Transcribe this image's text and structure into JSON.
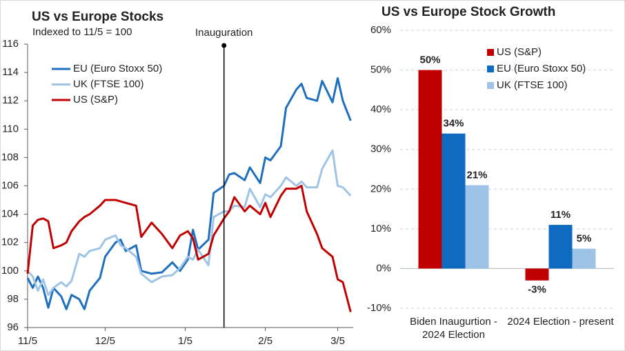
{
  "chart_data": [
    {
      "type": "line",
      "title": "US vs Europe Stocks",
      "subtitle": "Indexed to 11/5 = 100",
      "x": [
        "11/5",
        "11/7",
        "11/9",
        "11/11",
        "11/13",
        "11/15",
        "11/18",
        "11/20",
        "11/22",
        "11/25",
        "11/27",
        "11/29",
        "12/3",
        "12/5",
        "12/9",
        "12/11",
        "12/13",
        "12/17",
        "12/19",
        "12/23",
        "12/27",
        "12/31",
        "1/3",
        "1/6",
        "1/8",
        "1/10",
        "1/14",
        "1/16",
        "1/20",
        "1/22",
        "1/24",
        "1/28",
        "1/30",
        "2/3",
        "2/5",
        "2/7",
        "2/11",
        "2/13",
        "2/17",
        "2/19",
        "2/21",
        "2/25",
        "2/27",
        "3/3",
        "3/5",
        "3/7",
        "3/10"
      ],
      "series": [
        {
          "name": "EU (Euro Stoxx 50)",
          "color": "#1f6fbf",
          "values": [
            99.5,
            98.8,
            99.6,
            98.8,
            97.4,
            98.8,
            98.2,
            97.3,
            98.3,
            98.0,
            97.3,
            98.6,
            99.5,
            101.0,
            102.0,
            102.2,
            101.4,
            101.8,
            100.0,
            99.8,
            99.9,
            100.6,
            100.0,
            100.8,
            102.9,
            101.5,
            102.2,
            105.5,
            106.0,
            106.8,
            106.9,
            106.4,
            107.3,
            106.2,
            108.0,
            107.8,
            108.8,
            111.5,
            112.8,
            113.2,
            112.2,
            112.0,
            113.4,
            111.9,
            113.6,
            112.0,
            110.6
          ]
        },
        {
          "name": "UK (FTSE 100)",
          "color": "#9dc3e6",
          "values": [
            100.0,
            99.6,
            98.6,
            99.4,
            98.3,
            98.8,
            99.2,
            98.9,
            99.3,
            101.2,
            101.0,
            101.4,
            101.6,
            102.2,
            102.5,
            101.8,
            101.6,
            101.0,
            99.8,
            99.2,
            99.6,
            99.7,
            100.2,
            101.0,
            100.8,
            101.5,
            100.4,
            103.8,
            104.2,
            104.2,
            104.6,
            104.5,
            105.8,
            104.5,
            105.4,
            105.2,
            106.0,
            106.6,
            106.0,
            106.3,
            105.9,
            105.9,
            107.2,
            108.5,
            106.0,
            105.9,
            105.3
          ]
        },
        {
          "name": "US (S&P)",
          "color": "#c00000",
          "values": [
            99.8,
            103.2,
            103.6,
            103.7,
            103.5,
            101.6,
            101.8,
            102.0,
            102.8,
            103.5,
            103.8,
            104.0,
            104.6,
            105.0,
            105.0,
            104.9,
            104.8,
            104.6,
            102.4,
            103.4,
            102.6,
            101.6,
            102.5,
            102.8,
            102.3,
            100.8,
            101.2,
            102.5,
            103.7,
            104.2,
            105.2,
            104.2,
            104.6,
            104.0,
            104.8,
            103.8,
            105.3,
            105.8,
            105.8,
            106.0,
            104.2,
            102.6,
            101.6,
            101.0,
            99.4,
            99.2,
            97.1
          ]
        }
      ],
      "xlim": [
        "11/5",
        "3/11"
      ],
      "xticks": [
        "11/5",
        "12/5",
        "1/5",
        "2/5",
        "3/5"
      ],
      "ylim": [
        96,
        116
      ],
      "yticks": [
        96,
        98,
        100,
        102,
        104,
        106,
        108,
        110,
        112,
        114,
        116
      ],
      "annotations": [
        {
          "x": "1/20",
          "text": "Inauguration"
        }
      ],
      "legend": "upper left"
    },
    {
      "type": "bar",
      "title": "US vs Europe Stock Growth",
      "categories": [
        "Biden Inaugurtion - 2024 Election",
        "2024 Election - present"
      ],
      "series": [
        {
          "name": "US (S&P)",
          "color": "#c00000",
          "values": [
            50,
            -3
          ],
          "value_labels": [
            "50%",
            "-3%"
          ]
        },
        {
          "name": "EU (Euro Stoxx 50)",
          "color": "#0e6bbf",
          "values": [
            34,
            11
          ],
          "value_labels": [
            "34%",
            "11%"
          ]
        },
        {
          "name": "UK (FTSE 100)",
          "color": "#9dc3e6",
          "values": [
            21,
            5
          ],
          "value_labels": [
            "21%",
            "5%"
          ]
        }
      ],
      "ylim": [
        -10,
        60
      ],
      "yticks": [
        {
          "value": -10,
          "label": "-10%"
        },
        {
          "value": 0,
          "label": "0%"
        },
        {
          "value": 10,
          "label": "10%"
        },
        {
          "value": 20,
          "label": "20%"
        },
        {
          "value": 30,
          "label": "30%"
        },
        {
          "value": 40,
          "label": "40%"
        },
        {
          "value": 50,
          "label": "50%"
        },
        {
          "value": 60,
          "label": "60%"
        }
      ],
      "grid": true,
      "legend": "upper right"
    }
  ]
}
